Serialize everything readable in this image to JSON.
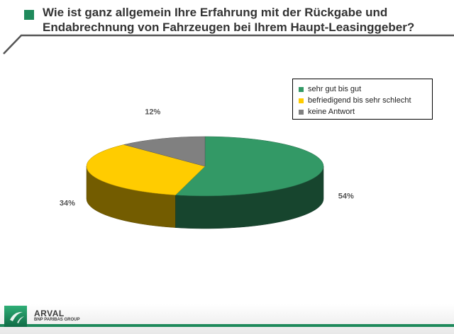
{
  "title": {
    "line1": "Wie ist ganz allgemein Ihre Erfahrung mit der Rückgabe und",
    "line2": "Endabrechnung von Fahrzeugen bei Ihrem Haupt-Leasinggeber?"
  },
  "colors": {
    "accent": "#1f8a5c"
  },
  "chart_data": {
    "type": "pie",
    "title": "",
    "labels": [
      "sehr gut bis gut",
      "befriedigend bis sehr schlecht",
      "keine Antwort"
    ],
    "values": [
      54,
      34,
      12
    ],
    "value_labels": [
      "54%",
      "34%",
      "12%"
    ],
    "colors": [
      "#339966",
      "#FFCC00",
      "#808080"
    ],
    "legend_position": "top-right",
    "style": "3d"
  },
  "footer": {
    "brand": "ARVAL",
    "brand_sub": "BNP PARIBAS GROUP"
  }
}
